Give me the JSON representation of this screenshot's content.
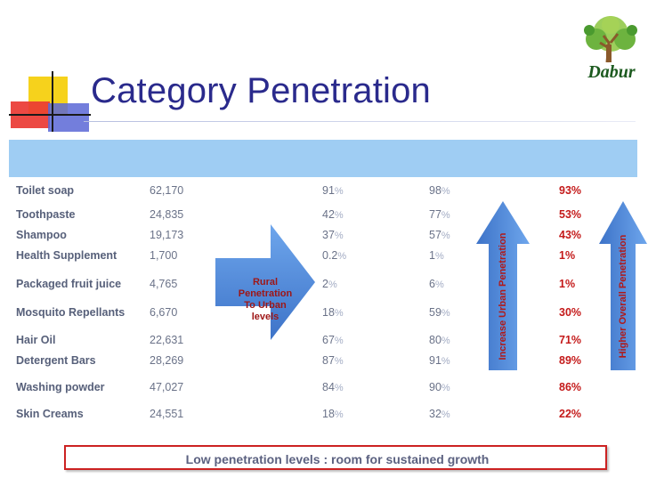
{
  "title": "Category Penetration",
  "brand": {
    "logo_text": "Dabur"
  },
  "rows": [
    {
      "category": "Toilet soap",
      "value": "62,170",
      "rural": "91",
      "urban": "98",
      "overall": "93%"
    },
    {
      "category": "Toothpaste",
      "value": "24,835",
      "rural": "42",
      "urban": "77",
      "overall": "53%"
    },
    {
      "category": "Shampoo",
      "value": "19,173",
      "rural": "37",
      "urban": "57",
      "overall": "43%"
    },
    {
      "category": "Health Supplement",
      "value": "1,700",
      "rural": "0.2",
      "urban": "1",
      "overall": "1%"
    },
    {
      "category": "Packaged fruit juice",
      "value": "4,765",
      "rural": "2",
      "urban": "6",
      "overall": "1%"
    },
    {
      "category": "Mosquito Repellants",
      "value": "6,670",
      "rural": "18",
      "urban": "59",
      "overall": "30%"
    },
    {
      "category": "Hair Oil",
      "value": "22,631",
      "rural": "67",
      "urban": "80",
      "overall": "71%"
    },
    {
      "category": "Detergent Bars",
      "value": "28,269",
      "rural": "87",
      "urban": "91",
      "overall": "89%"
    },
    {
      "category": "Washing powder",
      "value": "47,027",
      "rural": "84",
      "urban": "90",
      "overall": "86%"
    },
    {
      "category": "Skin Creams",
      "value": "24,551",
      "rural": "18",
      "urban": "32",
      "overall": "22%"
    }
  ],
  "percent_sign": "%",
  "arrows": {
    "rural_to_urban": [
      "Rural",
      "Penetration",
      "To Urban",
      "levels"
    ],
    "increase_urban": "Increase Urban Penetration",
    "higher_overall": "Higher Overall Penetration"
  },
  "footer": "Low penetration levels : room for sustained growth",
  "colors": {
    "title": "#2a2a8c",
    "header_band": "#9fcdf3",
    "arrow_blue": "#4f86d8",
    "overall_red": "#c41a1a"
  }
}
